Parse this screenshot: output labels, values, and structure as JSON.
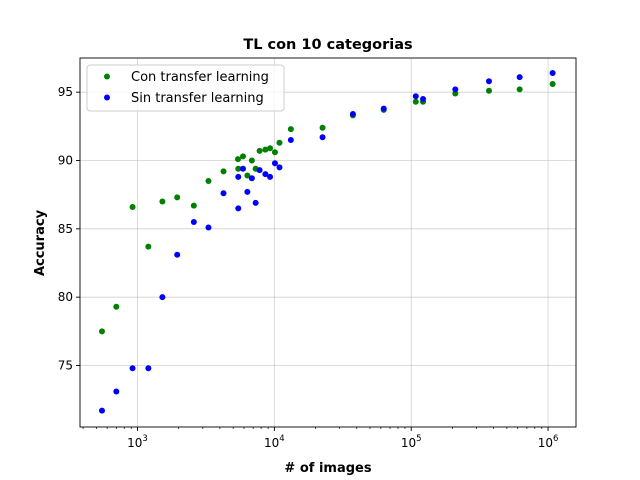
{
  "chart_data": {
    "type": "scatter",
    "title": "TL con 10 categorias",
    "xlabel": "# of images",
    "ylabel": "Accuracy",
    "xscale": "log",
    "xlim": [
      380,
      1600000
    ],
    "ylim": [
      70.5,
      97.5
    ],
    "x_ticks": [
      {
        "value": 1000,
        "label_base": "10",
        "label_exp": "3"
      },
      {
        "value": 10000,
        "label_base": "10",
        "label_exp": "4"
      },
      {
        "value": 100000,
        "label_base": "10",
        "label_exp": "5"
      },
      {
        "value": 1000000,
        "label_base": "10",
        "label_exp": "6"
      }
    ],
    "y_ticks": [
      75,
      80,
      85,
      90,
      95
    ],
    "grid": true,
    "legend_position": "top-left",
    "series": [
      {
        "name": "Con transfer learning",
        "color": "#008000",
        "points": [
          [
            550,
            77.5
          ],
          [
            700,
            79.3
          ],
          [
            920,
            86.6
          ],
          [
            1200,
            83.7
          ],
          [
            1520,
            87.0
          ],
          [
            1950,
            87.3
          ],
          [
            2580,
            86.7
          ],
          [
            3300,
            88.5
          ],
          [
            4250,
            89.2
          ],
          [
            5420,
            90.1
          ],
          [
            5450,
            89.4
          ],
          [
            5900,
            90.3
          ],
          [
            6350,
            88.9
          ],
          [
            6850,
            90.0
          ],
          [
            7300,
            89.4
          ],
          [
            7800,
            90.7
          ],
          [
            8600,
            90.8
          ],
          [
            9300,
            90.9
          ],
          [
            10100,
            90.6
          ],
          [
            10900,
            91.3
          ],
          [
            13200,
            92.3
          ],
          [
            22500,
            92.4
          ],
          [
            37500,
            93.3
          ],
          [
            63000,
            93.7
          ],
          [
            108000,
            94.3
          ],
          [
            122000,
            94.3
          ],
          [
            210000,
            94.9
          ],
          [
            370000,
            95.1
          ],
          [
            620000,
            95.2
          ],
          [
            1080000,
            95.6
          ]
        ]
      },
      {
        "name": "Sin transfer learning",
        "color": "#0000ff",
        "points": [
          [
            550,
            71.7
          ],
          [
            700,
            73.1
          ],
          [
            920,
            74.8
          ],
          [
            1200,
            74.8
          ],
          [
            1520,
            80.0
          ],
          [
            1950,
            83.1
          ],
          [
            2580,
            85.5
          ],
          [
            3300,
            85.1
          ],
          [
            4250,
            87.6
          ],
          [
            5450,
            86.5
          ],
          [
            5450,
            88.8
          ],
          [
            5900,
            89.4
          ],
          [
            6350,
            87.7
          ],
          [
            6850,
            88.7
          ],
          [
            7300,
            86.9
          ],
          [
            7800,
            89.3
          ],
          [
            8600,
            89.0
          ],
          [
            9300,
            88.8
          ],
          [
            10100,
            89.8
          ],
          [
            10900,
            89.5
          ],
          [
            13200,
            91.5
          ],
          [
            22500,
            91.7
          ],
          [
            37500,
            93.4
          ],
          [
            63000,
            93.8
          ],
          [
            108000,
            94.7
          ],
          [
            122000,
            94.5
          ],
          [
            210000,
            95.2
          ],
          [
            370000,
            95.8
          ],
          [
            620000,
            96.1
          ],
          [
            1080000,
            96.4
          ]
        ]
      }
    ]
  }
}
